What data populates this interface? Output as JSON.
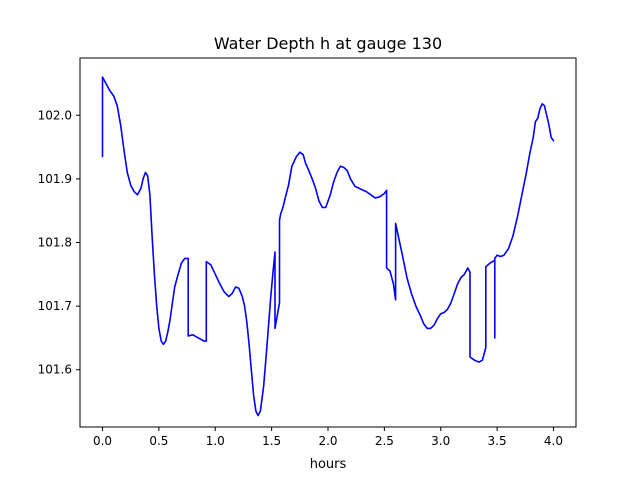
{
  "chart_data": {
    "type": "line",
    "title": "Water Depth h at gauge 130",
    "xlabel": "hours",
    "ylabel": "",
    "xlim": [
      -0.2,
      4.2
    ],
    "ylim": [
      101.51,
      102.09
    ],
    "xticks": [
      0.0,
      0.5,
      1.0,
      1.5,
      2.0,
      2.5,
      3.0,
      3.5,
      4.0
    ],
    "xtick_labels": [
      "0.0",
      "0.5",
      "1.0",
      "1.5",
      "2.0",
      "2.5",
      "3.0",
      "3.5",
      "4.0"
    ],
    "yticks": [
      101.6,
      101.7,
      101.8,
      101.9,
      102.0
    ],
    "ytick_labels": [
      "101.6",
      "101.7",
      "101.8",
      "101.9",
      "102.0"
    ],
    "grid": false,
    "series": [
      {
        "color": "#0000ff",
        "x": [
          0.0,
          0.0,
          0.03,
          0.06,
          0.1,
          0.13,
          0.16,
          0.19,
          0.22,
          0.25,
          0.28,
          0.31,
          0.34,
          0.36,
          0.38,
          0.4,
          0.42,
          0.44,
          0.46,
          0.48,
          0.5,
          0.52,
          0.54,
          0.56,
          0.58,
          0.6,
          0.62,
          0.64,
          0.67,
          0.7,
          0.73,
          0.76,
          0.76,
          0.8,
          0.85,
          0.9,
          0.92,
          0.92,
          0.96,
          1.0,
          1.04,
          1.08,
          1.12,
          1.15,
          1.18,
          1.21,
          1.24,
          1.26,
          1.28,
          1.3,
          1.32,
          1.34,
          1.36,
          1.38,
          1.4,
          1.43,
          1.46,
          1.49,
          1.51,
          1.53,
          1.53,
          1.57,
          1.57,
          1.58,
          1.6,
          1.62,
          1.65,
          1.68,
          1.72,
          1.75,
          1.78,
          1.8,
          1.83,
          1.86,
          1.89,
          1.92,
          1.95,
          1.98,
          2.02,
          2.05,
          2.08,
          2.11,
          2.14,
          2.17,
          2.2,
          2.24,
          2.28,
          2.3,
          2.34,
          2.38,
          2.42,
          2.46,
          2.5,
          2.52,
          2.52,
          2.55,
          2.58,
          2.6,
          2.6,
          2.63,
          2.66,
          2.7,
          2.74,
          2.78,
          2.82,
          2.85,
          2.88,
          2.91,
          2.94,
          2.97,
          3.0,
          3.03,
          3.06,
          3.09,
          3.12,
          3.15,
          3.18,
          3.21,
          3.24,
          3.26,
          3.26,
          3.3,
          3.34,
          3.37,
          3.4,
          3.4,
          3.42,
          3.44,
          3.46,
          3.48,
          3.48,
          3.48,
          3.5,
          3.53,
          3.56,
          3.6,
          3.64,
          3.68,
          3.72,
          3.76,
          3.79,
          3.82,
          3.84,
          3.86,
          3.88,
          3.9,
          3.92,
          3.94,
          3.96,
          3.98,
          4.0
        ],
        "y": [
          101.935,
          102.06,
          102.05,
          102.04,
          102.03,
          102.015,
          101.985,
          101.945,
          101.91,
          101.89,
          101.88,
          101.875,
          101.885,
          101.9,
          101.91,
          101.905,
          101.875,
          101.81,
          101.75,
          101.7,
          101.665,
          101.645,
          101.64,
          101.645,
          101.66,
          101.68,
          101.705,
          101.73,
          101.75,
          101.768,
          101.775,
          101.775,
          101.653,
          101.655,
          101.65,
          101.645,
          101.645,
          101.77,
          101.765,
          101.75,
          101.735,
          101.722,
          101.715,
          101.72,
          101.73,
          101.728,
          101.715,
          101.7,
          101.675,
          101.64,
          101.6,
          101.56,
          101.535,
          101.528,
          101.535,
          101.575,
          101.64,
          101.71,
          101.75,
          101.785,
          101.665,
          101.705,
          101.835,
          101.845,
          101.855,
          101.87,
          101.89,
          101.92,
          101.935,
          101.942,
          101.938,
          101.925,
          101.913,
          101.9,
          101.885,
          101.865,
          101.855,
          101.855,
          101.875,
          101.895,
          101.91,
          101.92,
          101.918,
          101.913,
          101.9,
          101.888,
          101.885,
          101.883,
          101.88,
          101.875,
          101.87,
          101.872,
          101.877,
          101.882,
          101.76,
          101.755,
          101.735,
          101.71,
          101.83,
          101.805,
          101.78,
          101.745,
          101.72,
          101.7,
          101.685,
          101.672,
          101.665,
          101.665,
          101.67,
          101.68,
          101.688,
          101.69,
          101.695,
          101.705,
          101.72,
          101.735,
          101.745,
          101.75,
          101.76,
          101.753,
          101.62,
          101.615,
          101.612,
          101.615,
          101.635,
          101.762,
          101.765,
          101.768,
          101.77,
          101.772,
          101.65,
          101.775,
          101.78,
          101.778,
          101.78,
          101.79,
          101.81,
          101.84,
          101.875,
          101.91,
          101.94,
          101.965,
          101.99,
          101.995,
          102.01,
          102.018,
          102.015,
          102.0,
          101.985,
          101.965,
          101.96
        ]
      }
    ]
  }
}
